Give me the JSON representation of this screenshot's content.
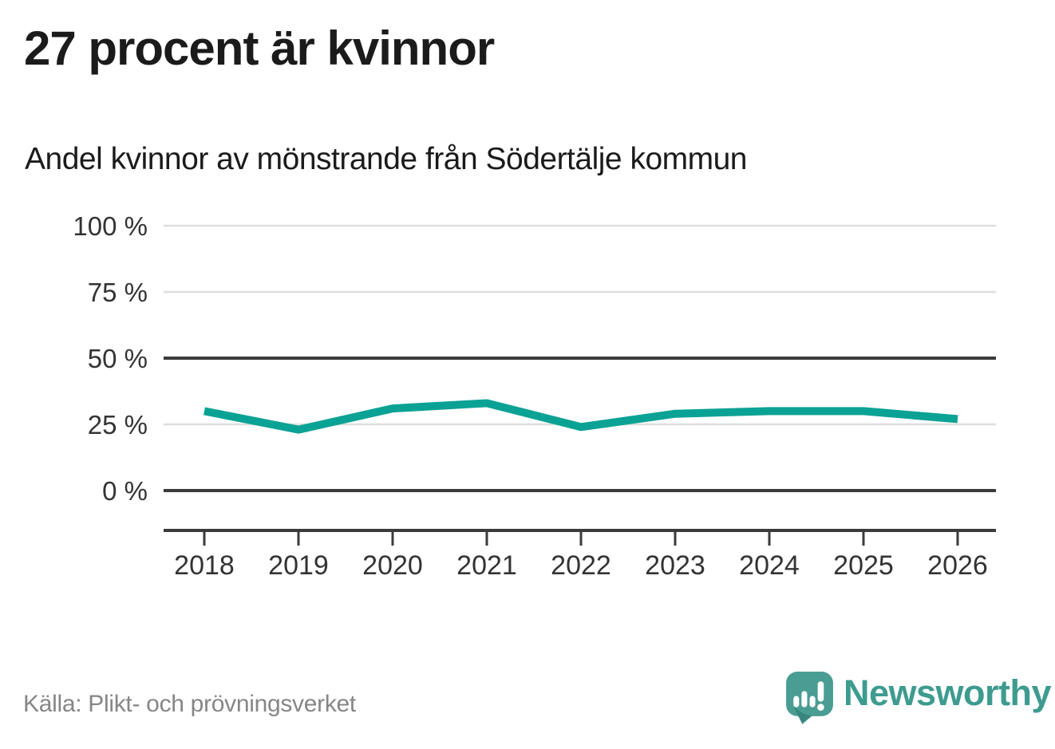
{
  "header": {
    "title": "27 procent är kvinnor",
    "subtitle": "Andel kvinnor av mönstrande från Södertälje kommun"
  },
  "chart_data": {
    "type": "line",
    "title": "Andel kvinnor av mönstrande från Södertälje kommun",
    "x": [
      "2018",
      "2019",
      "2020",
      "2021",
      "2022",
      "2023",
      "2024",
      "2025",
      "2026"
    ],
    "series": [
      {
        "name": "Andel kvinnor av mönstrande",
        "values": [
          30,
          23,
          31,
          33,
          24,
          29,
          30,
          30,
          27
        ]
      }
    ],
    "unit": "%",
    "ylim": [
      0,
      100
    ],
    "yticks": [
      100,
      75,
      50,
      25,
      0
    ],
    "ytick_labels": [
      "100 %",
      "75 %",
      "50 %",
      "25 %",
      "0 %"
    ],
    "emphasized_gridlines": [
      50,
      0
    ],
    "grid": "horizontal",
    "legend": "none",
    "line_color": "#0aa294"
  },
  "footer": {
    "source": "Källa: Plikt- och prövningsverket",
    "brand_name": "Newsworthy"
  },
  "colors": {
    "accent_teal": "#0aa294",
    "brand_teal": "#3d9b8f",
    "logo_bubble": "#4a9d92",
    "logo_shadow": "#337f76",
    "text_dark": "#1b1b1b",
    "axis_text": "#333333",
    "grid_light": "#dedede",
    "grid_dark": "#3b3b3b",
    "source_text": "#868686"
  },
  "icons": {
    "brand_logo": "newsworthy-speech-bubble-bar-chart-icon"
  }
}
